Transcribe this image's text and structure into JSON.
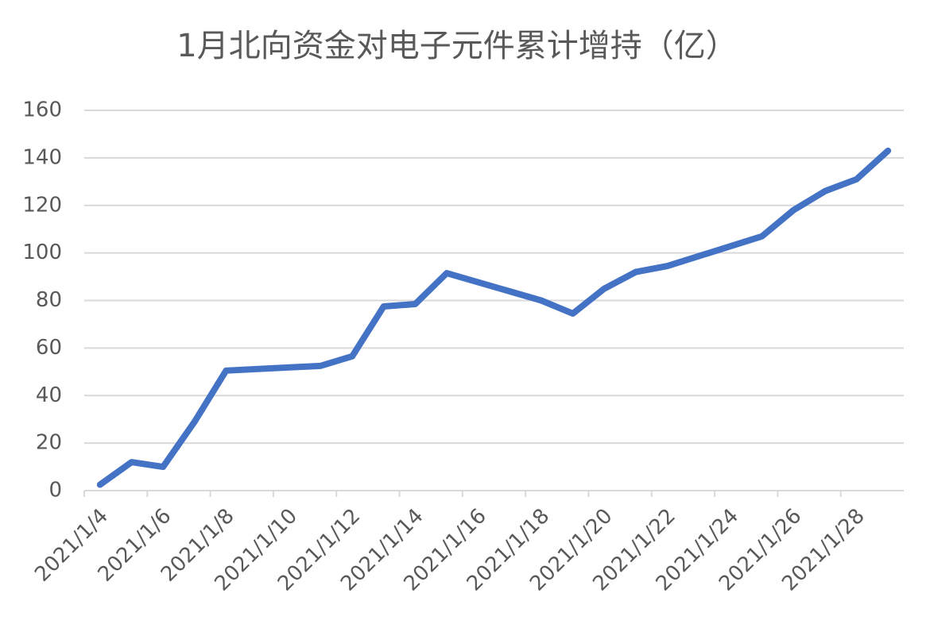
{
  "chart_data": {
    "type": "line",
    "title": "1月北向资金对电子元件累计增持（亿）",
    "x": [
      "2021/1/4",
      "2021/1/5",
      "2021/1/6",
      "2021/1/7",
      "2021/1/8",
      "2021/1/11",
      "2021/1/12",
      "2021/1/13",
      "2021/1/14",
      "2021/1/15",
      "2021/1/18",
      "2021/1/19",
      "2021/1/20",
      "2021/1/21",
      "2021/1/22",
      "2021/1/25",
      "2021/1/26",
      "2021/1/27",
      "2021/1/28",
      "2021/1/29"
    ],
    "series": [
      {
        "color": "#4472c4",
        "values": [
          2.5,
          12,
          10,
          29,
          50.5,
          52.5,
          56.5,
          77.5,
          78.5,
          91.5,
          80,
          74.5,
          85,
          92,
          94.5,
          107,
          118,
          126,
          131,
          143
        ]
      }
    ],
    "xlim": [
      "2021/1/4",
      "2021/1/29"
    ],
    "xticks": [
      "2021/1/4",
      "2021/1/6",
      "2021/1/8",
      "2021/1/10",
      "2021/1/12",
      "2021/1/14",
      "2021/1/16",
      "2021/1/18",
      "2021/1/20",
      "2021/1/22",
      "2021/1/24",
      "2021/1/26",
      "2021/1/28"
    ],
    "ylim": [
      0,
      160
    ],
    "yticks": [
      0,
      20,
      40,
      60,
      80,
      100,
      120,
      140,
      160
    ],
    "grid": true
  }
}
